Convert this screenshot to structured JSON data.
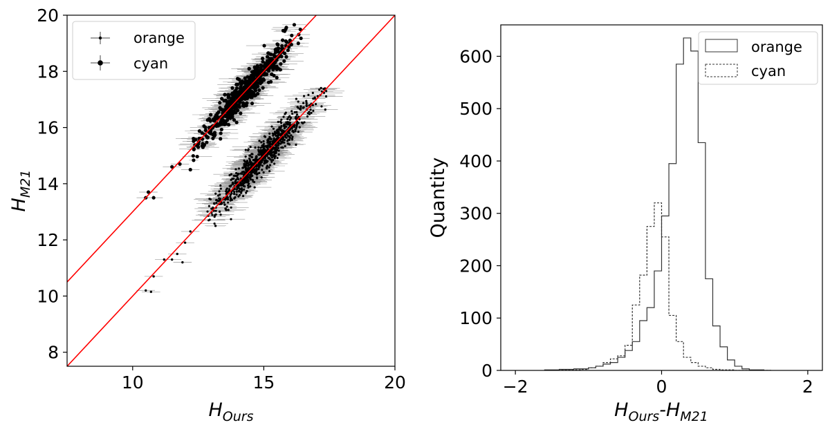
{
  "chart_data": [
    {
      "type": "scatter",
      "xlim": [
        7.5,
        20
      ],
      "ylim": [
        7.5,
        20
      ],
      "x_ticks": [
        10,
        15,
        20
      ],
      "y_ticks": [
        8,
        10,
        12,
        14,
        16,
        18,
        20
      ],
      "xlabel_base": "H",
      "xlabel_sub": "Ours",
      "ylabel_base": "H",
      "ylabel_sub": "M21",
      "legend_position": "upper-left",
      "grid": false,
      "reference_lines": [
        {
          "x": [
            7.5,
            17.0
          ],
          "y": [
            10.5,
            20.0
          ],
          "color": "#ff0000"
        },
        {
          "x": [
            7.5,
            20.0
          ],
          "y": [
            7.5,
            20.0
          ],
          "color": "#ff0000"
        }
      ],
      "series": [
        {
          "name": "orange",
          "marker": "small-dot",
          "cluster": {
            "x_range": [
              12.8,
              17.5
            ],
            "y_range": [
              12.0,
              17.2
            ],
            "relation": "y = x"
          },
          "outliers": [
            [
              10.5,
              10.2
            ],
            [
              10.7,
              10.15
            ],
            [
              10.8,
              10.7
            ],
            [
              11.2,
              11.3
            ],
            [
              11.5,
              11.3
            ],
            [
              11.7,
              11.5
            ],
            [
              11.9,
              11.2
            ],
            [
              12.0,
              11.9
            ],
            [
              12.2,
              12.3
            ]
          ]
        },
        {
          "name": "cyan",
          "marker": "dot",
          "cluster": {
            "x_range": [
              12.3,
              16.5
            ],
            "y_range": [
              15.0,
              19.5
            ],
            "relation": "y = x + 3"
          },
          "outliers": [
            [
              10.5,
              13.5
            ],
            [
              10.6,
              13.7
            ],
            [
              10.8,
              13.5
            ],
            [
              11.5,
              14.6
            ],
            [
              11.8,
              14.7
            ],
            [
              12.2,
              14.5
            ],
            [
              12.5,
              15.3
            ]
          ]
        }
      ],
      "errorbar_color": "#999999"
    },
    {
      "type": "histogram",
      "xlim": [
        -2.2,
        2.2
      ],
      "ylim": [
        0,
        660
      ],
      "x_ticks": [
        -2,
        0,
        2
      ],
      "x_tick_labels": [
        "−2",
        "0",
        "2"
      ],
      "y_ticks": [
        0,
        100,
        200,
        300,
        400,
        500,
        600
      ],
      "xlabel_parts": [
        "H",
        "Ours",
        "-H",
        "M21"
      ],
      "ylabel": "Quantity",
      "legend_position": "upper-right",
      "grid": false,
      "bin_edges": [
        -1.6,
        -1.5,
        -1.4,
        -1.3,
        -1.2,
        -1.1,
        -1.0,
        -0.9,
        -0.8,
        -0.7,
        -0.6,
        -0.5,
        -0.4,
        -0.3,
        -0.2,
        -0.1,
        0.0,
        0.1,
        0.2,
        0.3,
        0.4,
        0.5,
        0.6,
        0.7,
        0.8,
        0.9,
        1.0,
        1.1,
        1.2,
        1.3,
        1.4,
        1.5
      ],
      "series": [
        {
          "name": "orange",
          "line_style": "solid",
          "values": [
            1,
            1,
            2,
            2,
            3,
            3,
            5,
            8,
            12,
            15,
            25,
            38,
            55,
            95,
            120,
            190,
            295,
            395,
            585,
            635,
            610,
            435,
            175,
            85,
            45,
            20,
            8,
            3,
            1,
            1,
            0
          ]
        },
        {
          "name": "cyan",
          "line_style": "dashed",
          "values": [
            0,
            0,
            1,
            1,
            1,
            2,
            5,
            8,
            15,
            22,
            28,
            48,
            125,
            182,
            275,
            320,
            255,
            105,
            55,
            25,
            15,
            8,
            5,
            2,
            1,
            1,
            0,
            0,
            0,
            0,
            0
          ]
        }
      ]
    }
  ]
}
